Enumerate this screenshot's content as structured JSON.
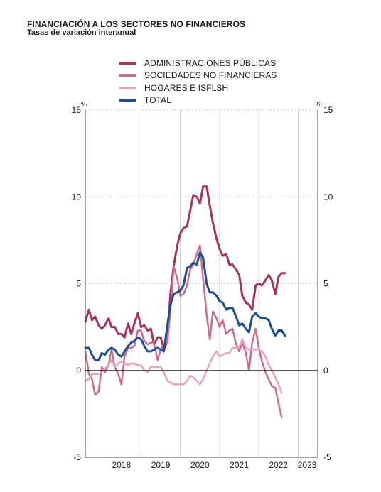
{
  "chart_data": {
    "type": "line",
    "title": "FINANCIACIÓN A LOS SECTORES NO FINANCIEROS",
    "subtitle": "Tasas de variación interanual",
    "unit_left": "%",
    "unit_right": "%",
    "ylim": [
      -5,
      15
    ],
    "yticks": [
      15,
      10,
      5,
      0,
      -5
    ],
    "xlim": [
      2017.58,
      2023.5
    ],
    "year_labels": [
      {
        "label": "2018",
        "x": 2018.5
      },
      {
        "label": "2019",
        "x": 2019.5
      },
      {
        "label": "2020",
        "x": 2020.5
      },
      {
        "label": "2021",
        "x": 2021.5
      },
      {
        "label": "2022",
        "x": 2022.5
      },
      {
        "label": "2023",
        "x": 2023.23
      }
    ],
    "year_boundaries": [
      2019,
      2020,
      2021,
      2022,
      2023
    ],
    "legend_placement": "top",
    "grid": "horizontal dashed",
    "series": [
      {
        "name": "ADMINISTRACIONES PÚBLICAS",
        "color": "#a8345a",
        "width": 3,
        "points": [
          [
            2017.58,
            2.8
          ],
          [
            2017.67,
            3.5
          ],
          [
            2017.75,
            2.9
          ],
          [
            2017.83,
            3.1
          ],
          [
            2017.92,
            2.6
          ],
          [
            2018.0,
            2.4
          ],
          [
            2018.08,
            2.6
          ],
          [
            2018.17,
            3.0
          ],
          [
            2018.25,
            2.5
          ],
          [
            2018.33,
            2.5
          ],
          [
            2018.42,
            2.1
          ],
          [
            2018.5,
            2.1
          ],
          [
            2018.58,
            1.9
          ],
          [
            2018.67,
            2.7
          ],
          [
            2018.75,
            2.1
          ],
          [
            2018.83,
            2.7
          ],
          [
            2018.92,
            3.3
          ],
          [
            2019.0,
            2.5
          ],
          [
            2019.08,
            2.6
          ],
          [
            2019.17,
            2.3
          ],
          [
            2019.25,
            2.4
          ],
          [
            2019.33,
            1.5
          ],
          [
            2019.42,
            1.9
          ],
          [
            2019.5,
            1.9
          ],
          [
            2019.58,
            1.2
          ],
          [
            2019.67,
            1.7
          ],
          [
            2019.75,
            4.5
          ],
          [
            2019.83,
            6.0
          ],
          [
            2019.92,
            7.2
          ],
          [
            2020.0,
            7.9
          ],
          [
            2020.08,
            8.2
          ],
          [
            2020.17,
            8.3
          ],
          [
            2020.25,
            9.2
          ],
          [
            2020.33,
            10.1
          ],
          [
            2020.42,
            10.0
          ],
          [
            2020.5,
            9.6
          ],
          [
            2020.58,
            10.6
          ],
          [
            2020.67,
            10.6
          ],
          [
            2020.75,
            9.5
          ],
          [
            2020.83,
            8.5
          ],
          [
            2020.92,
            7.6
          ],
          [
            2021.0,
            7.0
          ],
          [
            2021.08,
            6.6
          ],
          [
            2021.17,
            6.7
          ],
          [
            2021.25,
            6.1
          ],
          [
            2021.33,
            6.1
          ],
          [
            2021.42,
            5.8
          ],
          [
            2021.5,
            5.5
          ],
          [
            2021.58,
            4.3
          ],
          [
            2021.67,
            3.9
          ],
          [
            2021.75,
            3.8
          ],
          [
            2021.83,
            3.5
          ],
          [
            2021.92,
            4.9
          ],
          [
            2022.0,
            5.0
          ],
          [
            2022.08,
            4.9
          ],
          [
            2022.17,
            5.2
          ],
          [
            2022.25,
            5.5
          ],
          [
            2022.33,
            5.2
          ],
          [
            2022.42,
            4.4
          ],
          [
            2022.5,
            5.4
          ],
          [
            2022.58,
            5.6
          ],
          [
            2022.67,
            5.6
          ]
        ]
      },
      {
        "name": "SOCIEDADES NO FINANCIERAS",
        "color": "#cd6b8e",
        "width": 2.5,
        "points": [
          [
            2017.58,
            1.1
          ],
          [
            2017.67,
            -0.2
          ],
          [
            2017.75,
            -0.5
          ],
          [
            2017.83,
            -1.4
          ],
          [
            2017.92,
            -1.2
          ],
          [
            2018.0,
            0.2
          ],
          [
            2018.08,
            -0.1
          ],
          [
            2018.17,
            0.3
          ],
          [
            2018.25,
            1.2
          ],
          [
            2018.33,
            0.2
          ],
          [
            2018.42,
            -0.2
          ],
          [
            2018.5,
            -0.8
          ],
          [
            2018.58,
            0.8
          ],
          [
            2018.67,
            1.3
          ],
          [
            2018.75,
            1.3
          ],
          [
            2018.83,
            1.4
          ],
          [
            2018.92,
            2.3
          ],
          [
            2019.0,
            2.3
          ],
          [
            2019.08,
            1.7
          ],
          [
            2019.17,
            1.5
          ],
          [
            2019.25,
            1.6
          ],
          [
            2019.33,
            1.6
          ],
          [
            2019.42,
            0.6
          ],
          [
            2019.5,
            1.2
          ],
          [
            2019.58,
            1.5
          ],
          [
            2019.67,
            1.6
          ],
          [
            2019.75,
            3.5
          ],
          [
            2019.83,
            6.0
          ],
          [
            2019.92,
            5.3
          ],
          [
            2020.0,
            4.3
          ],
          [
            2020.08,
            4.4
          ],
          [
            2020.17,
            4.9
          ],
          [
            2020.25,
            5.8
          ],
          [
            2020.33,
            6.1
          ],
          [
            2020.42,
            6.7
          ],
          [
            2020.5,
            7.2
          ],
          [
            2020.58,
            5.3
          ],
          [
            2020.67,
            3.2
          ],
          [
            2020.75,
            1.8
          ],
          [
            2020.83,
            3.4
          ],
          [
            2020.92,
            3.0
          ],
          [
            2021.0,
            2.5
          ],
          [
            2021.08,
            2.9
          ],
          [
            2021.17,
            2.1
          ],
          [
            2021.25,
            2.3
          ],
          [
            2021.33,
            2.4
          ],
          [
            2021.42,
            1.5
          ],
          [
            2021.5,
            1.1
          ],
          [
            2021.58,
            1.6
          ],
          [
            2021.67,
            1.0
          ],
          [
            2021.75,
            0.0
          ],
          [
            2021.83,
            1.6
          ],
          [
            2021.92,
            2.4
          ],
          [
            2022.0,
            1.3
          ],
          [
            2022.08,
            0.5
          ],
          [
            2022.17,
            -0.1
          ],
          [
            2022.25,
            -0.5
          ],
          [
            2022.33,
            -0.9
          ],
          [
            2022.42,
            -1.0
          ],
          [
            2022.5,
            -1.9
          ],
          [
            2022.58,
            -2.7
          ]
        ]
      },
      {
        "name": "HOGARES E ISFLSH",
        "color": "#e8a3bb",
        "width": 2.5,
        "points": [
          [
            2017.58,
            -0.6
          ],
          [
            2017.67,
            -0.5
          ],
          [
            2017.75,
            -0.2
          ],
          [
            2017.83,
            -0.2
          ],
          [
            2017.92,
            -0.2
          ],
          [
            2018.0,
            -0.1
          ],
          [
            2018.08,
            0.1
          ],
          [
            2018.17,
            0.3
          ],
          [
            2018.25,
            0.6
          ],
          [
            2018.33,
            0.2
          ],
          [
            2018.42,
            0.4
          ],
          [
            2018.5,
            0.5
          ],
          [
            2018.58,
            0.4
          ],
          [
            2018.67,
            0.3
          ],
          [
            2018.75,
            0.4
          ],
          [
            2018.83,
            0.4
          ],
          [
            2018.92,
            0.3
          ],
          [
            2019.0,
            0.3
          ],
          [
            2019.08,
            0.0
          ],
          [
            2019.17,
            -0.1
          ],
          [
            2019.25,
            0.2
          ],
          [
            2019.33,
            0.2
          ],
          [
            2019.42,
            0.2
          ],
          [
            2019.5,
            0.2
          ],
          [
            2019.58,
            -0.1
          ],
          [
            2019.67,
            -0.6
          ],
          [
            2019.75,
            -0.7
          ],
          [
            2019.83,
            -0.8
          ],
          [
            2019.92,
            -0.8
          ],
          [
            2020.0,
            -0.8
          ],
          [
            2020.08,
            -0.8
          ],
          [
            2020.17,
            -0.6
          ],
          [
            2020.25,
            -0.3
          ],
          [
            2020.33,
            -0.4
          ],
          [
            2020.42,
            -0.6
          ],
          [
            2020.5,
            -0.8
          ],
          [
            2020.58,
            -0.5
          ],
          [
            2020.67,
            0.0
          ],
          [
            2020.75,
            0.4
          ],
          [
            2020.83,
            0.8
          ],
          [
            2020.92,
            1.1
          ],
          [
            2021.0,
            0.8
          ],
          [
            2021.08,
            0.9
          ],
          [
            2021.17,
            1.0
          ],
          [
            2021.25,
            1.0
          ],
          [
            2021.33,
            1.3
          ],
          [
            2021.42,
            1.3
          ],
          [
            2021.5,
            1.3
          ],
          [
            2021.58,
            1.8
          ],
          [
            2021.67,
            1.3
          ],
          [
            2021.75,
            1.2
          ],
          [
            2021.83,
            1.2
          ],
          [
            2021.92,
            1.2
          ],
          [
            2022.0,
            1.2
          ],
          [
            2022.08,
            1.1
          ],
          [
            2022.17,
            0.8
          ],
          [
            2022.25,
            0.3
          ],
          [
            2022.33,
            0.0
          ],
          [
            2022.42,
            -0.4
          ],
          [
            2022.5,
            -0.8
          ],
          [
            2022.58,
            -1.3
          ]
        ]
      },
      {
        "name": "TOTAL",
        "color": "#1f4e96",
        "width": 3,
        "points": [
          [
            2017.58,
            1.3
          ],
          [
            2017.67,
            1.3
          ],
          [
            2017.75,
            0.9
          ],
          [
            2017.83,
            0.6
          ],
          [
            2017.92,
            0.6
          ],
          [
            2018.0,
            1.0
          ],
          [
            2018.08,
            0.9
          ],
          [
            2018.17,
            1.2
          ],
          [
            2018.25,
            1.3
          ],
          [
            2018.33,
            1.2
          ],
          [
            2018.42,
            0.9
          ],
          [
            2018.5,
            0.8
          ],
          [
            2018.58,
            1.1
          ],
          [
            2018.67,
            1.4
          ],
          [
            2018.75,
            1.6
          ],
          [
            2018.83,
            1.7
          ],
          [
            2018.92,
            1.9
          ],
          [
            2019.0,
            1.8
          ],
          [
            2019.08,
            1.4
          ],
          [
            2019.17,
            1.1
          ],
          [
            2019.25,
            1.1
          ],
          [
            2019.33,
            1.2
          ],
          [
            2019.42,
            1.3
          ],
          [
            2019.5,
            1.2
          ],
          [
            2019.58,
            1.1
          ],
          [
            2019.67,
            2.6
          ],
          [
            2019.75,
            3.8
          ],
          [
            2019.83,
            4.4
          ],
          [
            2019.92,
            4.5
          ],
          [
            2020.0,
            4.6
          ],
          [
            2020.08,
            4.9
          ],
          [
            2020.17,
            5.9
          ],
          [
            2020.25,
            6.0
          ],
          [
            2020.33,
            6.2
          ],
          [
            2020.42,
            6.1
          ],
          [
            2020.5,
            6.8
          ],
          [
            2020.58,
            6.5
          ],
          [
            2020.67,
            5.0
          ],
          [
            2020.75,
            4.5
          ],
          [
            2020.83,
            4.5
          ],
          [
            2020.92,
            4.3
          ],
          [
            2021.0,
            4.0
          ],
          [
            2021.08,
            3.9
          ],
          [
            2021.17,
            3.5
          ],
          [
            2021.25,
            3.6
          ],
          [
            2021.33,
            3.6
          ],
          [
            2021.42,
            3.1
          ],
          [
            2021.5,
            2.6
          ],
          [
            2021.58,
            2.7
          ],
          [
            2021.67,
            2.4
          ],
          [
            2021.75,
            2.2
          ],
          [
            2021.83,
            3.1
          ],
          [
            2021.92,
            3.3
          ],
          [
            2022.0,
            3.1
          ],
          [
            2022.08,
            3.0
          ],
          [
            2022.17,
            3.0
          ],
          [
            2022.25,
            2.9
          ],
          [
            2022.33,
            2.4
          ],
          [
            2022.42,
            2.0
          ],
          [
            2022.5,
            2.3
          ],
          [
            2022.58,
            2.3
          ],
          [
            2022.67,
            2.0
          ]
        ]
      }
    ]
  }
}
